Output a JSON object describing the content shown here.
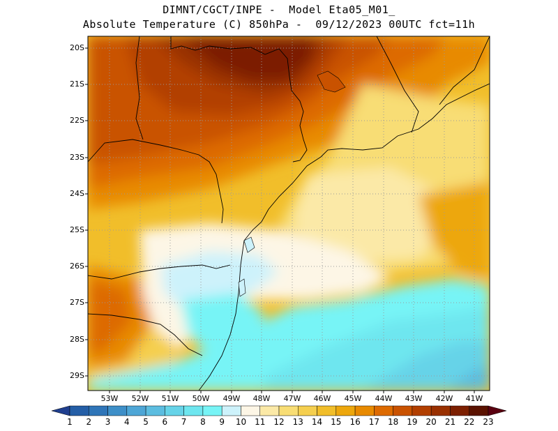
{
  "header": {
    "line1": "DIMNT/CGCT/INPE -  Model Eta05_M01_",
    "line2": "Absolute Temperature (C) 850hPa -  09/12/2023 00UTC fct=11h"
  },
  "axes": {
    "lat_labels": [
      "20S",
      "21S",
      "22S",
      "23S",
      "24S",
      "25S",
      "26S",
      "27S",
      "28S",
      "29S"
    ],
    "lon_labels": [
      "53W",
      "52W",
      "51W",
      "50W",
      "49W",
      "48W",
      "47W",
      "46W",
      "45W",
      "44W",
      "43W",
      "42W",
      "41W"
    ]
  },
  "colorbar": {
    "labels": [
      "1",
      "2",
      "3",
      "4",
      "5",
      "6",
      "7",
      "8",
      "9",
      "10",
      "11",
      "12",
      "13",
      "14",
      "15",
      "16",
      "17",
      "18",
      "19",
      "20",
      "21",
      "22",
      "23"
    ],
    "colors": [
      "#1f3f8f",
      "#245ea6",
      "#2f75b8",
      "#3e8fc8",
      "#4ea6d6",
      "#5cbde0",
      "#66d3e8",
      "#6ee6ef",
      "#77f4f6",
      "#cdf2fb",
      "#fdf6e6",
      "#fbe9a7",
      "#f8dd74",
      "#f5cf4f",
      "#f1be2a",
      "#eda70c",
      "#e88a00",
      "#dd6a00",
      "#c95200",
      "#b23f00",
      "#993000",
      "#7c1f00",
      "#5a1200",
      "#5a0010"
    ]
  },
  "colors": {
    "border_line": "#000000",
    "grid_dot": "#9a9a9a"
  }
}
